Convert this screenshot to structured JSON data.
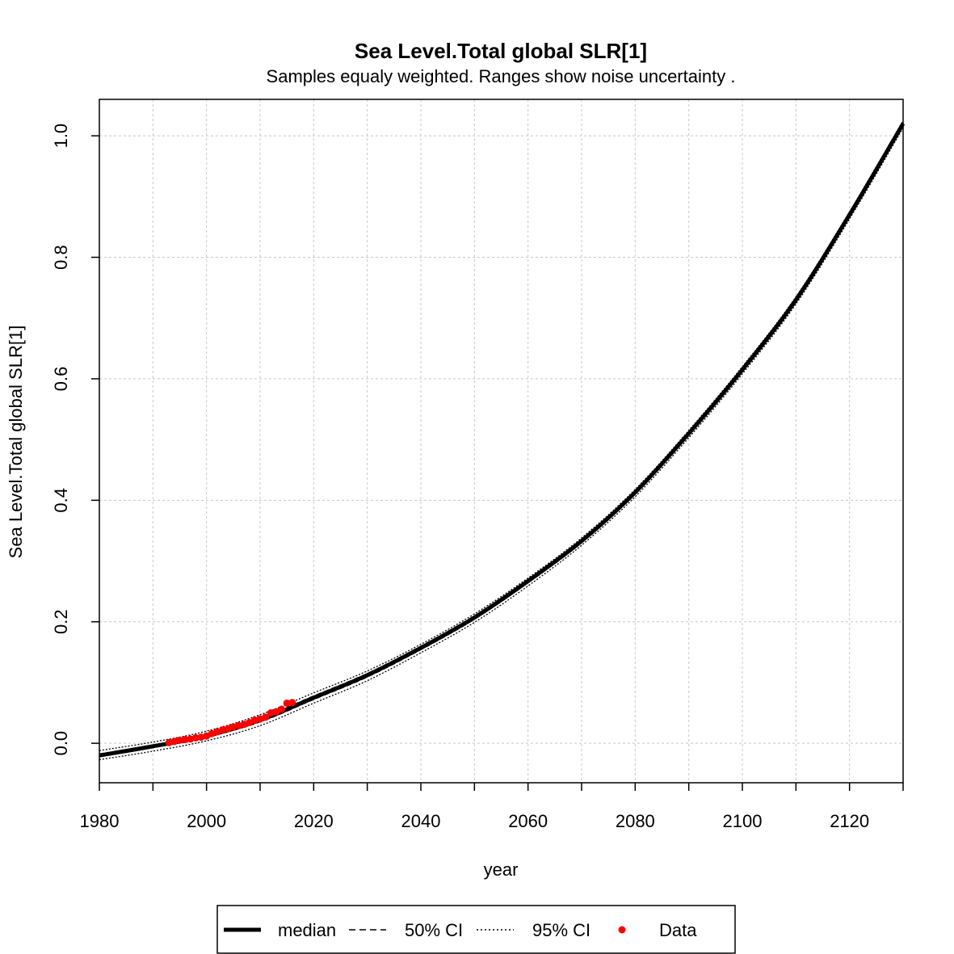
{
  "chart_data": {
    "type": "line",
    "title": "Sea Level.Total global SLR[1]",
    "subtitle": "Samples equaly weighted. Ranges show  noise uncertainty .",
    "xlabel": "year",
    "ylabel": "Sea Level.Total global SLR[1]",
    "xlim": [
      1980,
      2130
    ],
    "ylim": [
      -0.065,
      1.06
    ],
    "x_ticks": [
      1980,
      2000,
      2020,
      2040,
      2060,
      2080,
      2100,
      2120
    ],
    "x_minor_ticks": [
      1990,
      2010,
      2030,
      2050,
      2070,
      2090,
      2110,
      2130
    ],
    "y_ticks": [
      0.0,
      0.2,
      0.4,
      0.6,
      0.8,
      1.0
    ],
    "x_tick_labels": [
      "1980",
      "2000",
      "2020",
      "2040",
      "2060",
      "2080",
      "2100",
      "2120"
    ],
    "y_tick_labels": [
      "0.0",
      "0.2",
      "0.4",
      "0.6",
      "0.8",
      "1.0"
    ],
    "grid": true,
    "legend": {
      "placement": "bottom",
      "entries": [
        {
          "label": "median",
          "style": "solid-thick"
        },
        {
          "label": "50% CI",
          "style": "dashed"
        },
        {
          "label": "95% CI",
          "style": "dotted"
        },
        {
          "label": "Data",
          "style": "point",
          "color": "#ff0000"
        }
      ]
    },
    "colors": {
      "median": "#000000",
      "ci": "#000000",
      "data": "#ff0000",
      "grid": "#c8c8c8"
    },
    "series": [
      {
        "name": "median",
        "x": [
          1980,
          1990,
          2000,
          2010,
          2020,
          2030,
          2040,
          2050,
          2060,
          2070,
          2080,
          2090,
          2100,
          2110,
          2120,
          2130
        ],
        "y": [
          -0.02,
          -0.005,
          0.012,
          0.038,
          0.075,
          0.112,
          0.157,
          0.207,
          0.267,
          0.333,
          0.413,
          0.51,
          0.615,
          0.73,
          0.87,
          1.02
        ]
      },
      {
        "name": "50% CI upper",
        "x": [
          1980,
          1990,
          2000,
          2010,
          2020,
          2030,
          2040,
          2050,
          2060,
          2070,
          2080,
          2090,
          2100,
          2110,
          2120,
          2130
        ],
        "y": [
          -0.018,
          -0.003,
          0.014,
          0.041,
          0.078,
          0.115,
          0.16,
          0.21,
          0.27,
          0.336,
          0.416,
          0.513,
          0.618,
          0.733,
          0.873,
          1.023
        ]
      },
      {
        "name": "50% CI lower",
        "x": [
          1980,
          1990,
          2000,
          2010,
          2020,
          2030,
          2040,
          2050,
          2060,
          2070,
          2080,
          2090,
          2100,
          2110,
          2120,
          2130
        ],
        "y": [
          -0.022,
          -0.007,
          0.01,
          0.035,
          0.072,
          0.109,
          0.154,
          0.204,
          0.264,
          0.33,
          0.41,
          0.507,
          0.612,
          0.727,
          0.867,
          1.017
        ]
      },
      {
        "name": "95% CI upper",
        "x": [
          1980,
          1990,
          2000,
          2010,
          2020,
          2030,
          2040,
          2050,
          2060,
          2070,
          2080,
          2090,
          2100,
          2110,
          2120,
          2130
        ],
        "y": [
          -0.012,
          0.002,
          0.02,
          0.047,
          0.083,
          0.119,
          0.163,
          0.213,
          0.272,
          0.338,
          0.418,
          0.515,
          0.62,
          0.735,
          0.875,
          1.025
        ]
      },
      {
        "name": "95% CI lower",
        "x": [
          1980,
          1990,
          2000,
          2010,
          2020,
          2030,
          2040,
          2050,
          2060,
          2070,
          2080,
          2090,
          2100,
          2110,
          2120,
          2130
        ],
        "y": [
          -0.027,
          -0.013,
          0.004,
          0.029,
          0.066,
          0.103,
          0.149,
          0.199,
          0.259,
          0.326,
          0.406,
          0.503,
          0.608,
          0.723,
          0.863,
          1.013
        ]
      },
      {
        "name": "Data",
        "x": [
          1993,
          1994,
          1995,
          1996,
          1997,
          1998,
          1999,
          2000,
          2001,
          2002,
          2003,
          2004,
          2005,
          2006,
          2007,
          2008,
          2009,
          2010,
          2011,
          2012,
          2013,
          2014,
          2015,
          2016
        ],
        "y": [
          0.001,
          0.003,
          0.005,
          0.006,
          0.007,
          0.009,
          0.01,
          0.012,
          0.016,
          0.019,
          0.022,
          0.024,
          0.027,
          0.029,
          0.031,
          0.034,
          0.038,
          0.04,
          0.043,
          0.05,
          0.052,
          0.056,
          0.066,
          0.067
        ]
      }
    ]
  }
}
